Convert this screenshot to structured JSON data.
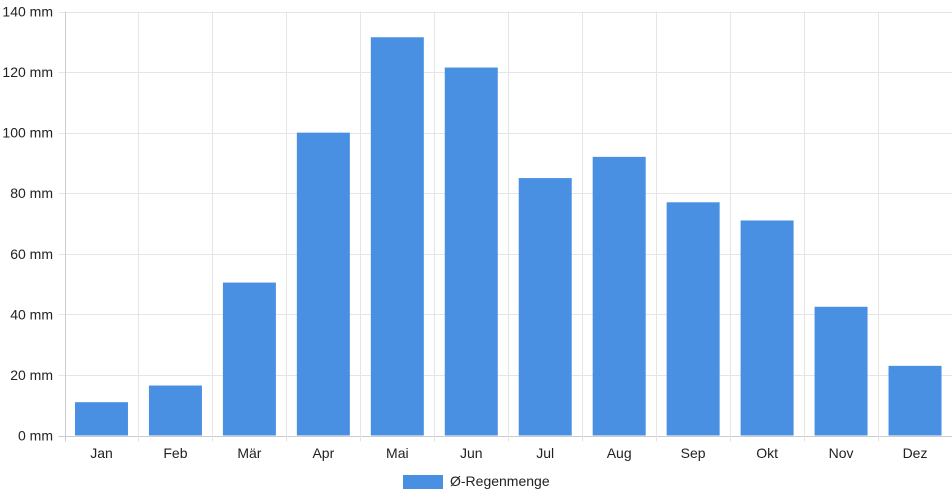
{
  "chart_data": {
    "type": "bar",
    "title": "",
    "xlabel": "",
    "ylabel": "",
    "categories": [
      "Jan",
      "Feb",
      "Mär",
      "Apr",
      "Mai",
      "Jun",
      "Jul",
      "Aug",
      "Sep",
      "Okt",
      "Nov",
      "Dez"
    ],
    "series": [
      {
        "name": "Ø-Regenmenge",
        "values": [
          11,
          16.5,
          50.5,
          100,
          131.5,
          121.5,
          85,
          92,
          77,
          71,
          42.5,
          23
        ],
        "color": "#4a90e2"
      }
    ],
    "ylim": [
      0,
      140
    ],
    "y_ticks": [
      0,
      20,
      40,
      60,
      80,
      100,
      120,
      140
    ],
    "y_tick_labels": [
      "0 mm",
      "20 mm",
      "40 mm",
      "60 mm",
      "80 mm",
      "100 mm",
      "120 mm",
      "140 mm"
    ],
    "grid": true,
    "legend_position": "bottom-center",
    "colors": {
      "grid": "#e5e5e5",
      "axis": "#cccccc",
      "text": "#222222"
    }
  }
}
